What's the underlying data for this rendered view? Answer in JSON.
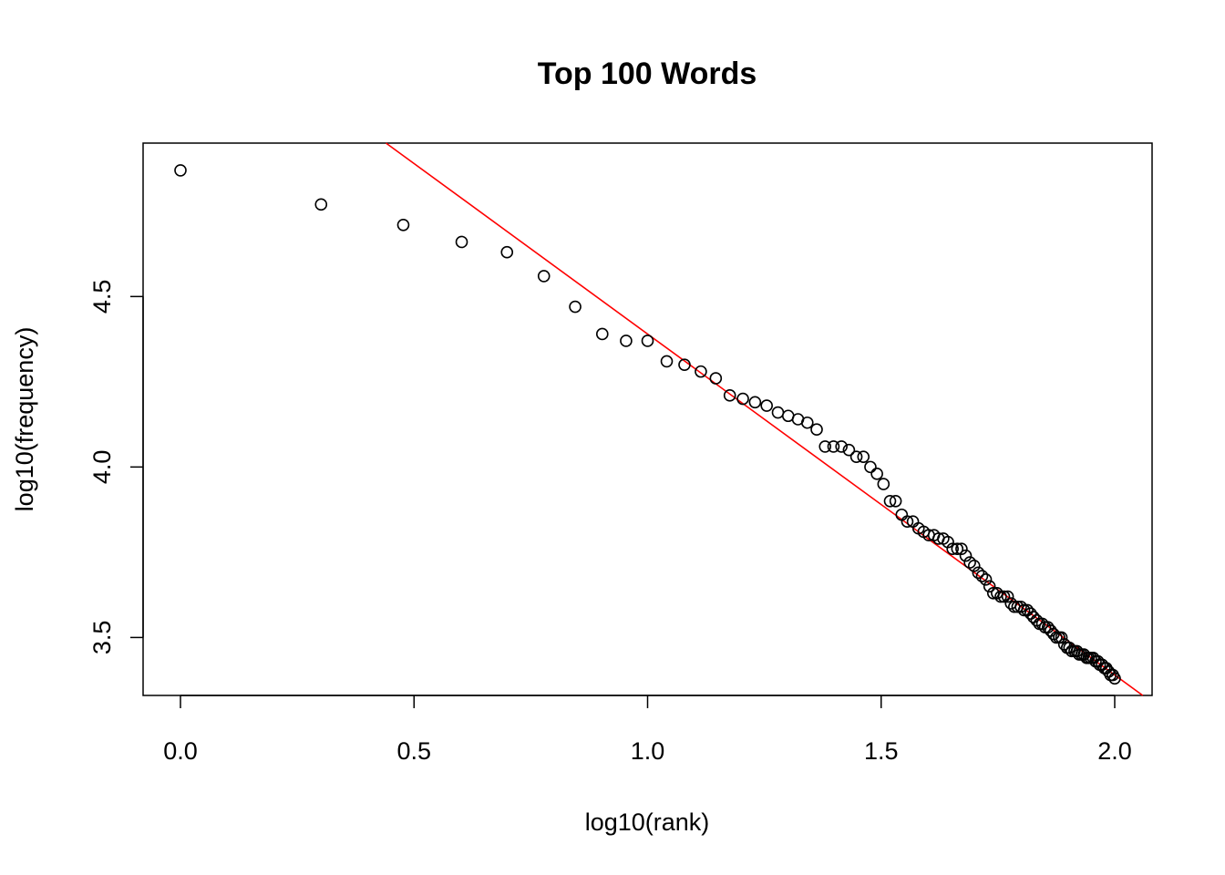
{
  "chart_data": {
    "type": "scatter",
    "title": "Top 100 Words",
    "xlabel": "log10(rank)",
    "ylabel": "log10(frequency)",
    "xlim": [
      -0.08,
      2.08
    ],
    "ylim": [
      3.33,
      4.95
    ],
    "xticks": [
      "0.0",
      "0.5",
      "1.0",
      "1.5",
      "2.0"
    ],
    "yticks": [
      "3.5",
      "4.0",
      "4.5"
    ],
    "grid": false,
    "point_color": "#000000",
    "fit_line": {
      "color": "#FF0000",
      "intercept": 5.39,
      "slope": -1.0
    },
    "series": [
      {
        "marker": "open-circle",
        "x": [
          0.0,
          0.301,
          0.477,
          0.602,
          0.699,
          0.778,
          0.845,
          0.903,
          0.954,
          1.0,
          1.041,
          1.079,
          1.114,
          1.146,
          1.176,
          1.204,
          1.23,
          1.255,
          1.279,
          1.301,
          1.322,
          1.342,
          1.362,
          1.38,
          1.398,
          1.415,
          1.431,
          1.447,
          1.462,
          1.477,
          1.491,
          1.505,
          1.519,
          1.531,
          1.544,
          1.556,
          1.568,
          1.58,
          1.591,
          1.602,
          1.613,
          1.623,
          1.633,
          1.643,
          1.653,
          1.663,
          1.672,
          1.681,
          1.69,
          1.699,
          1.708,
          1.716,
          1.724,
          1.732,
          1.74,
          1.748,
          1.756,
          1.763,
          1.771,
          1.778,
          1.785,
          1.792,
          1.799,
          1.806,
          1.813,
          1.82,
          1.826,
          1.833,
          1.839,
          1.845,
          1.851,
          1.857,
          1.863,
          1.869,
          1.875,
          1.881,
          1.886,
          1.892,
          1.898,
          1.903,
          1.908,
          1.914,
          1.919,
          1.924,
          1.929,
          1.934,
          1.94,
          1.944,
          1.949,
          1.954,
          1.959,
          1.964,
          1.968,
          1.973,
          1.978,
          1.982,
          1.987,
          1.991,
          1.996,
          2.0
        ],
        "y": [
          4.87,
          4.77,
          4.71,
          4.66,
          4.63,
          4.56,
          4.47,
          4.39,
          4.37,
          4.37,
          4.31,
          4.3,
          4.28,
          4.26,
          4.21,
          4.2,
          4.19,
          4.18,
          4.16,
          4.15,
          4.14,
          4.13,
          4.11,
          4.06,
          4.06,
          4.06,
          4.05,
          4.03,
          4.03,
          4.0,
          3.98,
          3.95,
          3.9,
          3.9,
          3.86,
          3.84,
          3.84,
          3.82,
          3.81,
          3.8,
          3.8,
          3.79,
          3.79,
          3.78,
          3.76,
          3.76,
          3.76,
          3.74,
          3.72,
          3.71,
          3.69,
          3.68,
          3.67,
          3.65,
          3.63,
          3.63,
          3.62,
          3.62,
          3.62,
          3.6,
          3.59,
          3.59,
          3.59,
          3.58,
          3.58,
          3.57,
          3.56,
          3.55,
          3.54,
          3.54,
          3.53,
          3.53,
          3.52,
          3.51,
          3.5,
          3.5,
          3.5,
          3.48,
          3.47,
          3.47,
          3.46,
          3.46,
          3.46,
          3.45,
          3.45,
          3.45,
          3.44,
          3.44,
          3.44,
          3.44,
          3.43,
          3.43,
          3.42,
          3.42,
          3.41,
          3.41,
          3.4,
          3.39,
          3.39,
          3.38
        ]
      }
    ]
  }
}
